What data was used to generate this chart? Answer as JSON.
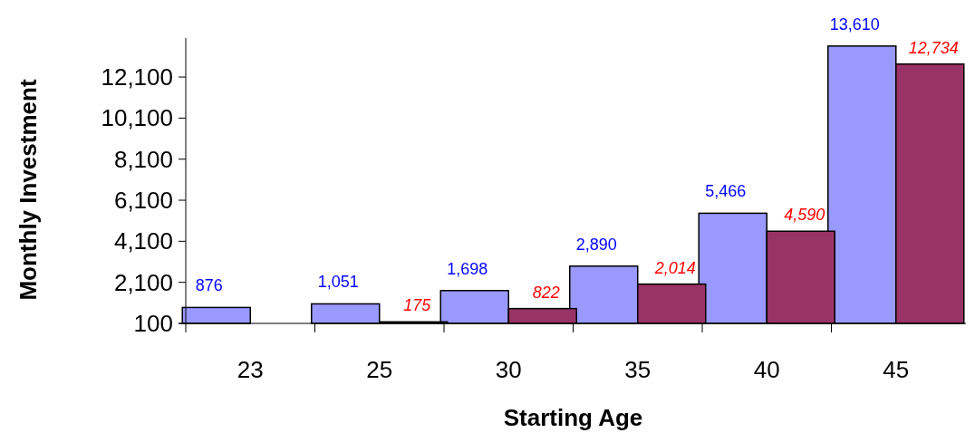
{
  "chart_data": {
    "type": "bar",
    "xlabel": "Starting Age",
    "ylabel": "Monthly Investment",
    "categories": [
      "23",
      "25",
      "30",
      "35",
      "40",
      "45"
    ],
    "series": [
      {
        "color": "#9999ff",
        "values": [
          876,
          1051,
          1698,
          2890,
          5466,
          13610
        ],
        "value_labels": [
          "876",
          "1,051",
          "1,698",
          "2,890",
          "5,466",
          "13,610"
        ]
      },
      {
        "color": "#993366",
        "values": [
          null,
          175,
          822,
          2014,
          4590,
          12734
        ],
        "value_labels": [
          null,
          "175",
          "822",
          "2,014",
          "4,590",
          "12,734"
        ]
      }
    ],
    "ylim": [
      100,
      14000
    ],
    "yticks": [
      {
        "value": 100,
        "label": "100"
      },
      {
        "value": 2100,
        "label": "2,100"
      },
      {
        "value": 4100,
        "label": "4,100"
      },
      {
        "value": 6100,
        "label": "6,100"
      },
      {
        "value": 8100,
        "label": "8,100"
      },
      {
        "value": 10100,
        "label": "10,100"
      },
      {
        "value": 12100,
        "label": "12,100"
      }
    ],
    "grid": false
  }
}
